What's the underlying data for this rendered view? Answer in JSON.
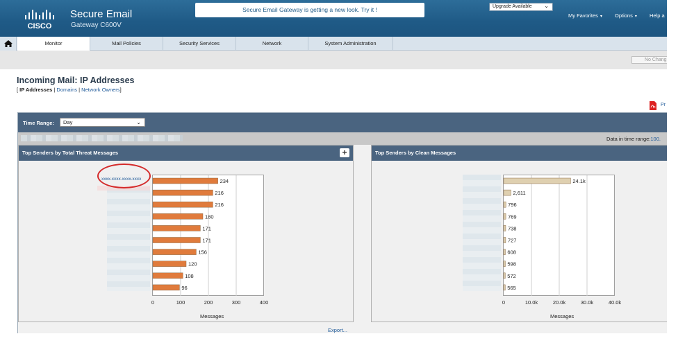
{
  "header": {
    "product_name": "Secure Email",
    "product_model": "Gateway C600V",
    "announcement": "Secure Email Gateway is getting a new look. Try it !",
    "upgrade_select": "Upgrade Available",
    "links": [
      "My Favorites",
      "Options",
      "Help a"
    ]
  },
  "nav": {
    "tabs": [
      "Monitor",
      "Mail Policies",
      "Security Services",
      "Network",
      "System Administration"
    ],
    "active": "Monitor"
  },
  "toolbar": {
    "no_changes": "No Chang"
  },
  "page": {
    "title": "Incoming Mail: IP Addresses",
    "crumb_current": "IP Addresses",
    "crumb_links": [
      "Domains",
      "Network Owners"
    ],
    "print_label": "Pr"
  },
  "report": {
    "time_range_label": "Time Range:",
    "time_range_value": "Day",
    "data_in_range_label": "Data in time range:",
    "data_in_range_value": "100.",
    "export_label": "Export...",
    "highlighted_ip": "xxxx.xxxx.xxxx.xxxx"
  },
  "colors": {
    "threat_bar": "#e07b3c",
    "clean_bar": "#dfd0b0",
    "header_bg": "#1f5a86",
    "panel_head": "#4a6480"
  },
  "chart_data": [
    {
      "type": "bar",
      "orientation": "horizontal",
      "title": "Top Senders by Total Threat Messages",
      "xlabel": "Messages",
      "xlim": [
        0,
        400
      ],
      "ticks": [
        "0",
        "100",
        "200",
        "300",
        "400"
      ],
      "values": [
        234,
        216,
        216,
        180,
        171,
        171,
        156,
        120,
        108,
        96
      ],
      "value_labels": [
        "234",
        "216",
        "216",
        "180",
        "171",
        "171",
        "156",
        "120",
        "108",
        "96"
      ]
    },
    {
      "type": "bar",
      "orientation": "horizontal",
      "title": "Top Senders by Clean Messages",
      "xlabel": "Messages",
      "xlim": [
        0,
        40000
      ],
      "ticks": [
        "0",
        "10.0k",
        "20.0k",
        "30.0k",
        "40.0k"
      ],
      "values": [
        24100,
        2611,
        796,
        769,
        738,
        727,
        608,
        598,
        572,
        565
      ],
      "value_labels": [
        "24.1k",
        "2,611",
        "796",
        "769",
        "738",
        "727",
        "608",
        "598",
        "572",
        "565"
      ]
    }
  ]
}
